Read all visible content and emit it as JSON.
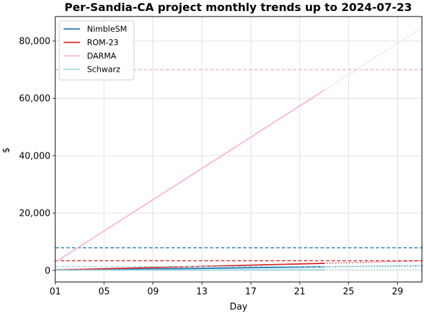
{
  "chart_data": {
    "type": "line",
    "title": "Per-Sandia-CA project monthly trends up to 2024-07-23",
    "xlabel": "Day",
    "ylabel": "$",
    "xlim": [
      1,
      31
    ],
    "ylim": [
      -4000,
      88500
    ],
    "x_ticks": [
      1,
      5,
      9,
      13,
      17,
      21,
      25,
      29
    ],
    "x_tick_labels": [
      "01",
      "05",
      "09",
      "13",
      "17",
      "21",
      "25",
      "29"
    ],
    "y_ticks": [
      0,
      20000,
      40000,
      60000,
      80000
    ],
    "y_tick_labels": [
      "0",
      "20,000",
      "40,000",
      "60,000",
      "80,000"
    ],
    "grid": true,
    "legend_position": "top-left",
    "last_actual_day": 23,
    "series": [
      {
        "name": "NimbleSM",
        "color": "#1f77b4",
        "actual": {
          "x": [
            1,
            23
          ],
          "y": [
            100,
            1300
          ]
        },
        "projection": {
          "x": [
            23,
            31
          ],
          "y": [
            1300,
            1750
          ]
        },
        "budget": 7900
      },
      {
        "name": "ROM-23",
        "color": "#d62728",
        "actual": {
          "x": [
            1,
            23
          ],
          "y": [
            200,
            2500
          ]
        },
        "projection": {
          "x": [
            23,
            31
          ],
          "y": [
            2500,
            3350
          ]
        },
        "budget": 3400
      },
      {
        "name": "DARMA",
        "color": "#f7b6d2",
        "actual": {
          "x": [
            1,
            23
          ],
          "y": [
            2900,
            62800
          ]
        },
        "projection": {
          "x": [
            23,
            31
          ],
          "y": [
            62800,
            84600
          ]
        },
        "budget": 70000
      },
      {
        "name": "Schwarz",
        "color": "#9edae5",
        "actual": {
          "x": [
            1,
            23
          ],
          "y": [
            100,
            300
          ]
        },
        "projection": {
          "x": [
            23,
            31
          ],
          "y": [
            300,
            400
          ]
        },
        "budget": 1400
      }
    ]
  }
}
